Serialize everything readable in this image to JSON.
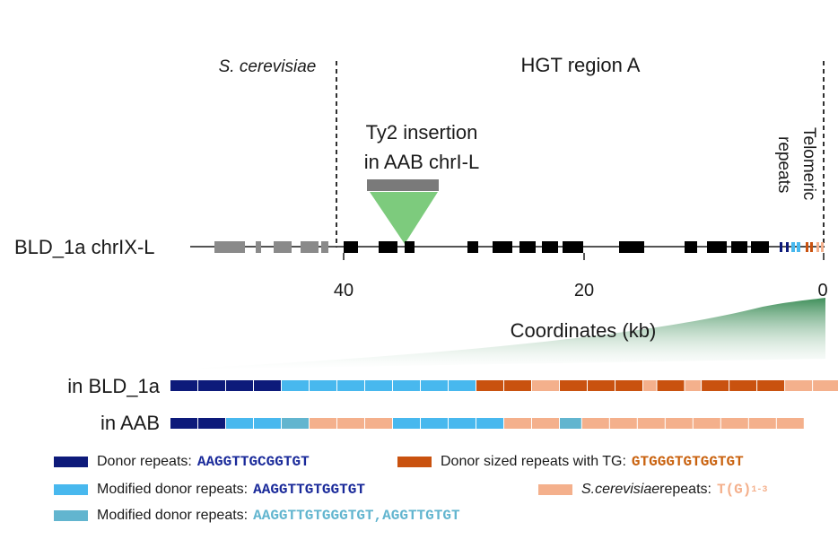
{
  "labels": {
    "species": "S. cerevisiae",
    "region": "HGT region A",
    "insertion_line1": "Ty2 insertion",
    "insertion_line2": "in  AAB chrI-L",
    "chromosome": "BLD_1a chrIX-L",
    "telomeric_line1": "Telomeric",
    "telomeric_line2": "repeats",
    "axis_title": "Coordinates (kb)",
    "row1": "in BLD_1a",
    "row2": "in AAB"
  },
  "axis": {
    "ticks": [
      "40",
      "20",
      "0"
    ],
    "tick_values_kb": [
      40,
      20,
      0
    ],
    "direction": "descending"
  },
  "colors": {
    "donor": "#0d1a7a",
    "modified_donor": "#48b8ee",
    "modified_donor_2": "#62b5cf",
    "donor_tg": "#c9520f",
    "scer": "#f4b08c",
    "insertion": "#7dcb7d",
    "gene_left": "#8a8a8a",
    "gene_right": "#000000"
  },
  "repeat_rows": [
    {
      "label_key": "row1",
      "segments": [
        {
          "type": "donor",
          "count": 4
        },
        {
          "type": "modified_donor",
          "count": 7
        },
        {
          "type": "donor_tg",
          "count": 2
        },
        {
          "type": "scer",
          "count": 1
        },
        {
          "type": "donor_tg",
          "count": 3
        },
        {
          "type": "scer",
          "count": 0.5
        },
        {
          "type": "donor_tg",
          "count": 1
        },
        {
          "type": "scer",
          "count": 0.6
        },
        {
          "type": "donor_tg",
          "count": 3
        },
        {
          "type": "scer",
          "count": 2
        }
      ]
    },
    {
      "label_key": "row2",
      "segments": [
        {
          "type": "donor",
          "count": 2
        },
        {
          "type": "modified_donor",
          "count": 2
        },
        {
          "type": "modified_donor_2",
          "count": 1
        },
        {
          "type": "scer",
          "count": 3
        },
        {
          "type": "modified_donor",
          "count": 4
        },
        {
          "type": "scer",
          "count": 2
        },
        {
          "type": "modified_donor_2",
          "count": 0.8
        },
        {
          "type": "scer",
          "count": 8
        }
      ]
    }
  ],
  "legend": [
    {
      "color_key": "donor",
      "text": "Donor repeats:",
      "seq": "AAGGTTGCGGTGT",
      "seq_color": "#1a2a9a"
    },
    {
      "color_key": "donor_tg",
      "text": "Donor sized repeats with TG:",
      "seq": "GTGGGTGTGGTGT",
      "seq_color": "#c9620f"
    },
    {
      "color_key": "modified_donor",
      "text": "Modified donor repeats:",
      "seq": "AAGGTTGTGGTGT",
      "seq_color": "#1a2a9a"
    },
    {
      "color_key": "scer",
      "text_italic": "S.cerevisiae",
      "text": " repeats:",
      "seq": "T(G)",
      "seq_sub": "1-3",
      "seq_color": "#f4b08c"
    },
    {
      "color_key": "modified_donor_2",
      "text": "Modified donor repeats:",
      "seq": "AAGGTTGTGGGTGT,AGGTTGTGT",
      "seq_color": "#62b5cf"
    }
  ]
}
